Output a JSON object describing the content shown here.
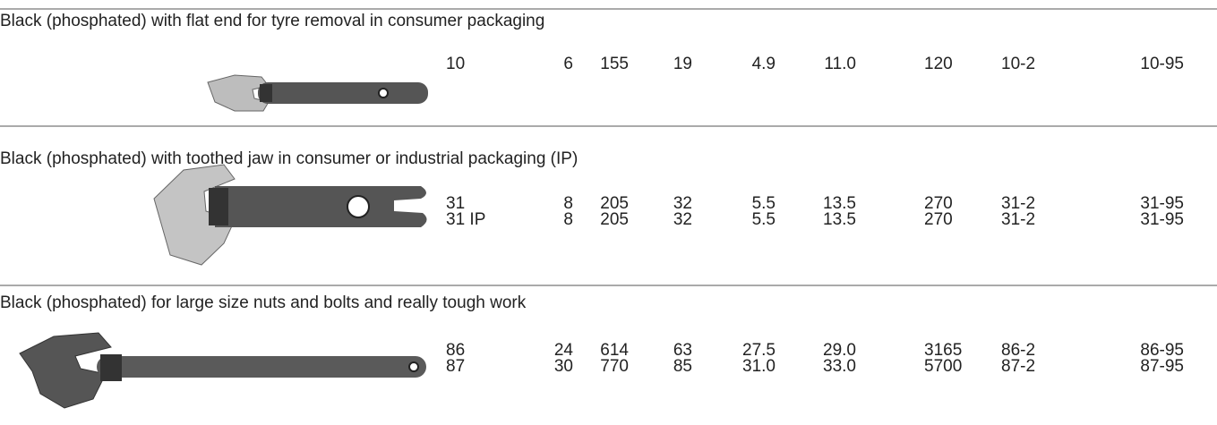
{
  "sections": [
    {
      "heading": "Black (phosphated) with flat end for tyre removal in consumer packaging",
      "rows": [
        [
          "10",
          "6",
          "155",
          "19",
          "4.9",
          "11.0",
          "120",
          "10-2",
          "10-95"
        ]
      ]
    },
    {
      "heading": "Black (phosphated) with toothed jaw in consumer or industrial packaging (IP)",
      "rows": [
        [
          "31",
          "8",
          "205",
          "32",
          "5.5",
          "13.5",
          "270",
          "31-2",
          "31-95"
        ],
        [
          "31 IP",
          "8",
          "205",
          "32",
          "5.5",
          "13.5",
          "270",
          "31-2",
          "31-95"
        ]
      ]
    },
    {
      "heading": "Black (phosphated) for large size nuts and bolts and really tough work",
      "rows": [
        [
          "86",
          "24",
          "614",
          "63",
          "27.5",
          "29.0",
          "3165",
          "86-2",
          "86-95"
        ],
        [
          "87",
          "30",
          "770",
          "85",
          "31.0",
          "33.0",
          "5700",
          "87-2",
          "87-95"
        ]
      ]
    }
  ]
}
